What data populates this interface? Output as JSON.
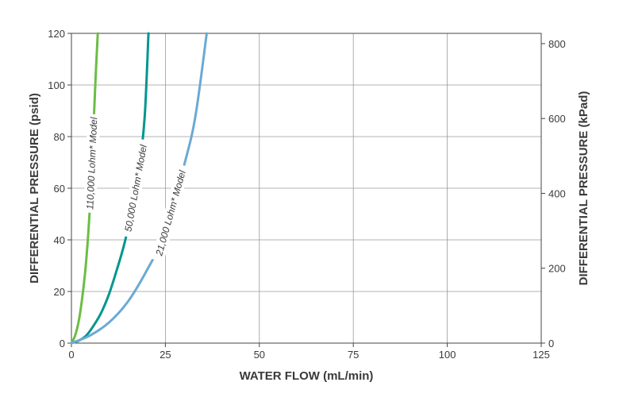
{
  "chart_data": {
    "type": "line",
    "xlabel": "WATER FLOW (mL/min)",
    "ylabel": "DIFFERENTIAL PRESSURE (psid)",
    "y2label": "DIFFERENTIAL PRESSURE (kPad)",
    "xlim": [
      0,
      125
    ],
    "ylim": [
      0,
      120
    ],
    "y2lim": [
      0,
      827.4
    ],
    "x_ticks": [
      "0",
      "25",
      "50",
      "75",
      "100",
      "125"
    ],
    "y_ticks": [
      "0",
      "20",
      "40",
      "60",
      "80",
      "100",
      "120"
    ],
    "y2_ticks": [
      "0",
      "200",
      "400",
      "600",
      "800"
    ],
    "grid": true,
    "series": [
      {
        "name": "110,000 Lohm* Model",
        "color": "#6cbd45",
        "x": [
          0,
          1,
          2,
          3,
          4,
          5,
          6,
          6.5,
          7
        ],
        "y": [
          0,
          3,
          9,
          19,
          33,
          55,
          88,
          105,
          120
        ]
      },
      {
        "name": "50,000 Lohm* Model",
        "color": "#00968f",
        "x": [
          0,
          2,
          4,
          6,
          8,
          10,
          12,
          14,
          16,
          18,
          19.5,
          20.5
        ],
        "y": [
          0,
          1,
          3,
          7,
          12,
          19,
          28,
          38,
          51,
          67,
          88,
          120
        ]
      },
      {
        "name": "21,000 Lohm* Model",
        "color": "#6aaad4",
        "x": [
          0,
          5,
          10,
          15,
          20,
          25,
          30,
          33,
          36
        ],
        "y": [
          0,
          3,
          8,
          16,
          28,
          43,
          69,
          88,
          120
        ]
      }
    ]
  }
}
